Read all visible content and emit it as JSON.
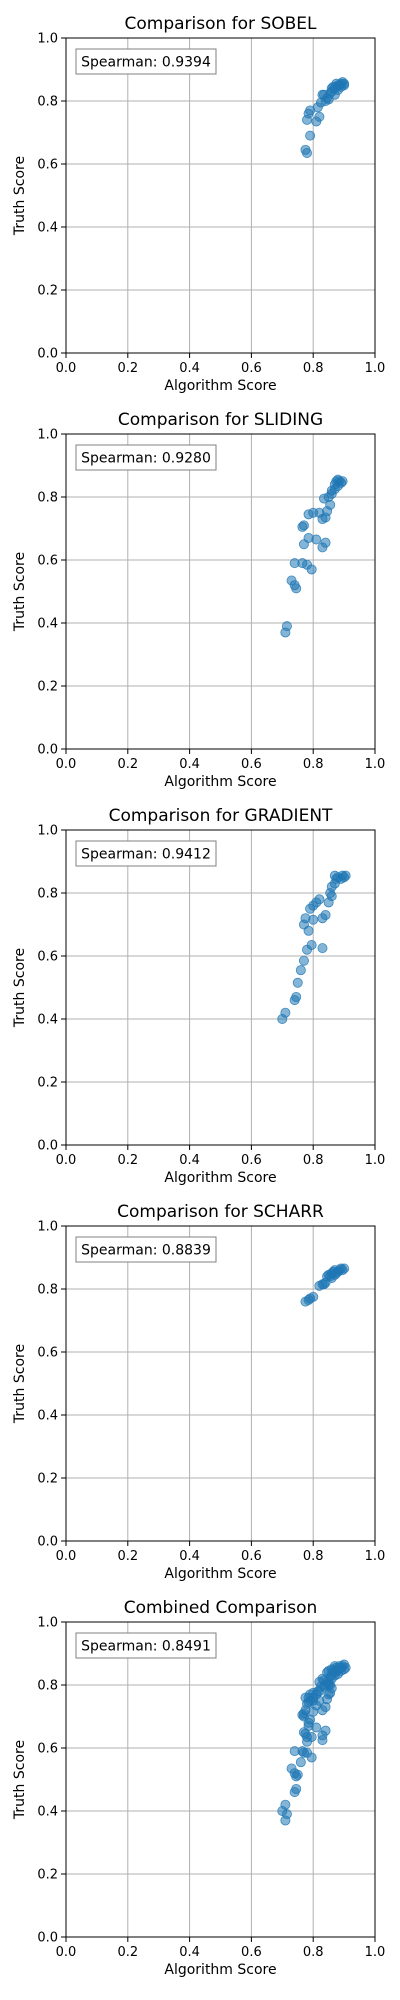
{
  "colors": {
    "point": "#1f77b4",
    "grid": "#b0b0b0",
    "axes": "#000000",
    "annotation_border": "#808080"
  },
  "chart_data": [
    {
      "type": "scatter",
      "title": "Comparison for SOBEL",
      "xlabel": "Algorithm Score",
      "ylabel": "Truth Score",
      "xlim": [
        0,
        1
      ],
      "ylim": [
        0,
        1
      ],
      "x_ticks": [
        "0.0",
        "0.2",
        "0.4",
        "0.6",
        "0.8",
        "1.0"
      ],
      "y_ticks": [
        "0.0",
        "0.2",
        "0.4",
        "0.6",
        "0.8",
        "1.0"
      ],
      "grid": true,
      "annotation": "Spearman: 0.9394",
      "points": [
        [
          0.775,
          0.645
        ],
        [
          0.78,
          0.635
        ],
        [
          0.79,
          0.69
        ],
        [
          0.78,
          0.74
        ],
        [
          0.785,
          0.76
        ],
        [
          0.79,
          0.77
        ],
        [
          0.81,
          0.735
        ],
        [
          0.82,
          0.75
        ],
        [
          0.815,
          0.78
        ],
        [
          0.825,
          0.795
        ],
        [
          0.83,
          0.82
        ],
        [
          0.845,
          0.81
        ],
        [
          0.84,
          0.8
        ],
        [
          0.855,
          0.825
        ],
        [
          0.86,
          0.83
        ],
        [
          0.87,
          0.84
        ],
        [
          0.88,
          0.835
        ],
        [
          0.885,
          0.85
        ],
        [
          0.89,
          0.855
        ],
        [
          0.895,
          0.86
        ],
        [
          0.9,
          0.855
        ],
        [
          0.87,
          0.82
        ],
        [
          0.85,
          0.805
        ],
        [
          0.865,
          0.845
        ],
        [
          0.88,
          0.85
        ],
        [
          0.9,
          0.85
        ],
        [
          0.835,
          0.82
        ],
        [
          0.86,
          0.84
        ],
        [
          0.89,
          0.845
        ],
        [
          0.875,
          0.855
        ]
      ]
    },
    {
      "type": "scatter",
      "title": "Comparison for SLIDING",
      "xlabel": "Algorithm Score",
      "ylabel": "Truth Score",
      "xlim": [
        0,
        1
      ],
      "ylim": [
        0,
        1
      ],
      "x_ticks": [
        "0.0",
        "0.2",
        "0.4",
        "0.6",
        "0.8",
        "1.0"
      ],
      "y_ticks": [
        "0.0",
        "0.2",
        "0.4",
        "0.6",
        "0.8",
        "1.0"
      ],
      "grid": true,
      "annotation": "Spearman: 0.9280",
      "points": [
        [
          0.71,
          0.37
        ],
        [
          0.715,
          0.39
        ],
        [
          0.73,
          0.535
        ],
        [
          0.745,
          0.51
        ],
        [
          0.74,
          0.52
        ],
        [
          0.74,
          0.59
        ],
        [
          0.765,
          0.59
        ],
        [
          0.78,
          0.585
        ],
        [
          0.795,
          0.57
        ],
        [
          0.77,
          0.65
        ],
        [
          0.785,
          0.67
        ],
        [
          0.81,
          0.665
        ],
        [
          0.83,
          0.64
        ],
        [
          0.84,
          0.655
        ],
        [
          0.77,
          0.71
        ],
        [
          0.765,
          0.705
        ],
        [
          0.785,
          0.745
        ],
        [
          0.8,
          0.75
        ],
        [
          0.82,
          0.75
        ],
        [
          0.83,
          0.73
        ],
        [
          0.845,
          0.755
        ],
        [
          0.84,
          0.735
        ],
        [
          0.835,
          0.795
        ],
        [
          0.85,
          0.8
        ],
        [
          0.855,
          0.775
        ],
        [
          0.86,
          0.82
        ],
        [
          0.87,
          0.84
        ],
        [
          0.875,
          0.85
        ],
        [
          0.88,
          0.855
        ],
        [
          0.885,
          0.85
        ],
        [
          0.89,
          0.845
        ],
        [
          0.895,
          0.85
        ],
        [
          0.87,
          0.825
        ],
        [
          0.86,
          0.81
        ],
        [
          0.88,
          0.835
        ]
      ]
    },
    {
      "type": "scatter",
      "title": "Comparison for GRADIENT",
      "xlabel": "Algorithm Score",
      "ylabel": "Truth Score",
      "xlim": [
        0,
        1
      ],
      "ylim": [
        0,
        1
      ],
      "x_ticks": [
        "0.0",
        "0.2",
        "0.4",
        "0.6",
        "0.8",
        "1.0"
      ],
      "y_ticks": [
        "0.0",
        "0.2",
        "0.4",
        "0.6",
        "0.8",
        "1.0"
      ],
      "grid": true,
      "annotation": "Spearman: 0.9412",
      "points": [
        [
          0.7,
          0.4
        ],
        [
          0.71,
          0.42
        ],
        [
          0.74,
          0.46
        ],
        [
          0.745,
          0.47
        ],
        [
          0.75,
          0.515
        ],
        [
          0.76,
          0.555
        ],
        [
          0.77,
          0.585
        ],
        [
          0.78,
          0.62
        ],
        [
          0.795,
          0.635
        ],
        [
          0.83,
          0.625
        ],
        [
          0.785,
          0.68
        ],
        [
          0.77,
          0.7
        ],
        [
          0.775,
          0.72
        ],
        [
          0.8,
          0.715
        ],
        [
          0.83,
          0.72
        ],
        [
          0.84,
          0.73
        ],
        [
          0.79,
          0.75
        ],
        [
          0.8,
          0.76
        ],
        [
          0.81,
          0.77
        ],
        [
          0.82,
          0.78
        ],
        [
          0.85,
          0.77
        ],
        [
          0.86,
          0.79
        ],
        [
          0.855,
          0.8
        ],
        [
          0.86,
          0.82
        ],
        [
          0.87,
          0.83
        ],
        [
          0.875,
          0.845
        ],
        [
          0.88,
          0.85
        ],
        [
          0.89,
          0.845
        ],
        [
          0.895,
          0.855
        ],
        [
          0.9,
          0.85
        ],
        [
          0.905,
          0.855
        ],
        [
          0.87,
          0.855
        ]
      ]
    },
    {
      "type": "scatter",
      "title": "Comparison for SCHARR",
      "xlabel": "Algorithm Score",
      "ylabel": "Truth Score",
      "xlim": [
        0,
        1
      ],
      "ylim": [
        0,
        1
      ],
      "x_ticks": [
        "0.0",
        "0.2",
        "0.4",
        "0.6",
        "0.8",
        "1.0"
      ],
      "y_ticks": [
        "0.0",
        "0.2",
        "0.4",
        "0.6",
        "0.8",
        "1.0"
      ],
      "grid": true,
      "annotation": "Spearman: 0.8839",
      "points": [
        [
          0.775,
          0.76
        ],
        [
          0.785,
          0.765
        ],
        [
          0.79,
          0.77
        ],
        [
          0.8,
          0.775
        ],
        [
          0.82,
          0.81
        ],
        [
          0.83,
          0.815
        ],
        [
          0.84,
          0.82
        ],
        [
          0.845,
          0.84
        ],
        [
          0.85,
          0.845
        ],
        [
          0.86,
          0.85
        ],
        [
          0.865,
          0.855
        ],
        [
          0.87,
          0.86
        ],
        [
          0.88,
          0.855
        ],
        [
          0.885,
          0.86
        ],
        [
          0.89,
          0.865
        ],
        [
          0.895,
          0.86
        ],
        [
          0.9,
          0.865
        ],
        [
          0.86,
          0.835
        ],
        [
          0.875,
          0.85
        ],
        [
          0.855,
          0.84
        ],
        [
          0.835,
          0.815
        ],
        [
          0.87,
          0.845
        ]
      ]
    },
    {
      "type": "scatter",
      "title": "Combined Comparison",
      "xlabel": "Algorithm Score",
      "ylabel": "Truth Score",
      "xlim": [
        0,
        1
      ],
      "ylim": [
        0,
        1
      ],
      "x_ticks": [
        "0.0",
        "0.2",
        "0.4",
        "0.6",
        "0.8",
        "1.0"
      ],
      "y_ticks": [
        "0.0",
        "0.2",
        "0.4",
        "0.6",
        "0.8",
        "1.0"
      ],
      "grid": true,
      "annotation": "Spearman: 0.8491",
      "points": [
        [
          0.7,
          0.4
        ],
        [
          0.71,
          0.37
        ],
        [
          0.715,
          0.39
        ],
        [
          0.71,
          0.42
        ],
        [
          0.73,
          0.535
        ],
        [
          0.74,
          0.52
        ],
        [
          0.745,
          0.51
        ],
        [
          0.74,
          0.46
        ],
        [
          0.745,
          0.47
        ],
        [
          0.75,
          0.515
        ],
        [
          0.74,
          0.59
        ],
        [
          0.76,
          0.555
        ],
        [
          0.765,
          0.59
        ],
        [
          0.77,
          0.585
        ],
        [
          0.78,
          0.585
        ],
        [
          0.795,
          0.57
        ],
        [
          0.78,
          0.62
        ],
        [
          0.795,
          0.635
        ],
        [
          0.83,
          0.625
        ],
        [
          0.83,
          0.64
        ],
        [
          0.84,
          0.655
        ],
        [
          0.775,
          0.645
        ],
        [
          0.78,
          0.635
        ],
        [
          0.77,
          0.65
        ],
        [
          0.785,
          0.67
        ],
        [
          0.81,
          0.665
        ],
        [
          0.785,
          0.68
        ],
        [
          0.79,
          0.69
        ],
        [
          0.77,
          0.7
        ],
        [
          0.765,
          0.705
        ],
        [
          0.77,
          0.71
        ],
        [
          0.775,
          0.72
        ],
        [
          0.8,
          0.715
        ],
        [
          0.83,
          0.72
        ],
        [
          0.84,
          0.73
        ],
        [
          0.81,
          0.735
        ],
        [
          0.775,
          0.76
        ],
        [
          0.78,
          0.74
        ],
        [
          0.785,
          0.745
        ],
        [
          0.785,
          0.76
        ],
        [
          0.79,
          0.75
        ],
        [
          0.8,
          0.75
        ],
        [
          0.82,
          0.75
        ],
        [
          0.845,
          0.755
        ],
        [
          0.79,
          0.77
        ],
        [
          0.8,
          0.76
        ],
        [
          0.8,
          0.775
        ],
        [
          0.81,
          0.77
        ],
        [
          0.815,
          0.78
        ],
        [
          0.82,
          0.78
        ],
        [
          0.825,
          0.795
        ],
        [
          0.835,
          0.795
        ],
        [
          0.85,
          0.77
        ],
        [
          0.855,
          0.775
        ],
        [
          0.85,
          0.8
        ],
        [
          0.86,
          0.79
        ],
        [
          0.82,
          0.81
        ],
        [
          0.83,
          0.82
        ],
        [
          0.835,
          0.815
        ],
        [
          0.84,
          0.8
        ],
        [
          0.845,
          0.81
        ],
        [
          0.85,
          0.805
        ],
        [
          0.855,
          0.8
        ],
        [
          0.855,
          0.825
        ],
        [
          0.86,
          0.82
        ],
        [
          0.86,
          0.835
        ],
        [
          0.865,
          0.845
        ],
        [
          0.87,
          0.83
        ],
        [
          0.87,
          0.84
        ],
        [
          0.875,
          0.845
        ],
        [
          0.875,
          0.855
        ],
        [
          0.88,
          0.835
        ],
        [
          0.88,
          0.85
        ],
        [
          0.885,
          0.85
        ],
        [
          0.885,
          0.86
        ],
        [
          0.89,
          0.845
        ],
        [
          0.89,
          0.855
        ],
        [
          0.895,
          0.86
        ],
        [
          0.9,
          0.85
        ],
        [
          0.9,
          0.865
        ],
        [
          0.905,
          0.855
        ],
        [
          0.87,
          0.86
        ],
        [
          0.86,
          0.85
        ],
        [
          0.85,
          0.845
        ],
        [
          0.845,
          0.84
        ]
      ]
    }
  ]
}
